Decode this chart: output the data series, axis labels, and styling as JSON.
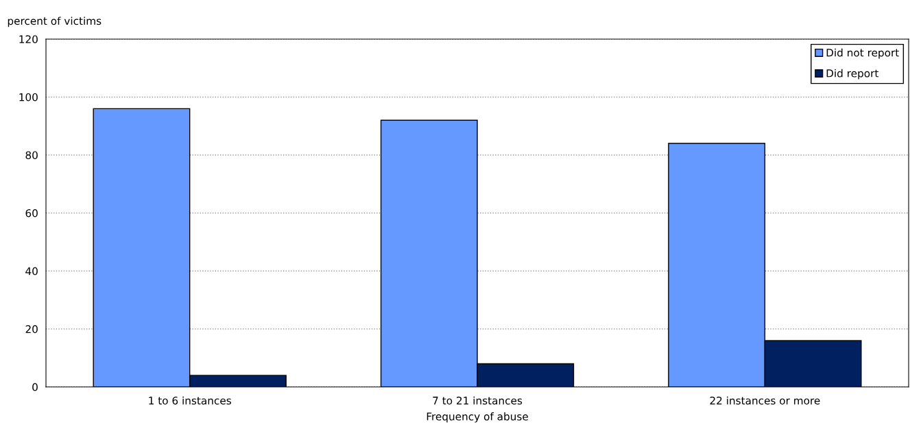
{
  "chart_data": {
    "type": "bar",
    "ylabel": "percent of victims",
    "xlabel": "Frequency of abuse",
    "categories": [
      "1 to 6 instances",
      "7 to 21 instances",
      "22 instances or more"
    ],
    "series": [
      {
        "name": "Did not report",
        "color": "#6699ff",
        "values": [
          96,
          92,
          84
        ]
      },
      {
        "name": "Did report",
        "color": "#002060",
        "values": [
          4,
          8,
          16
        ]
      }
    ],
    "ylim": [
      0,
      120
    ],
    "yticks": [
      0,
      20,
      40,
      60,
      80,
      100,
      120
    ],
    "grid": "y",
    "legend": "top right"
  }
}
